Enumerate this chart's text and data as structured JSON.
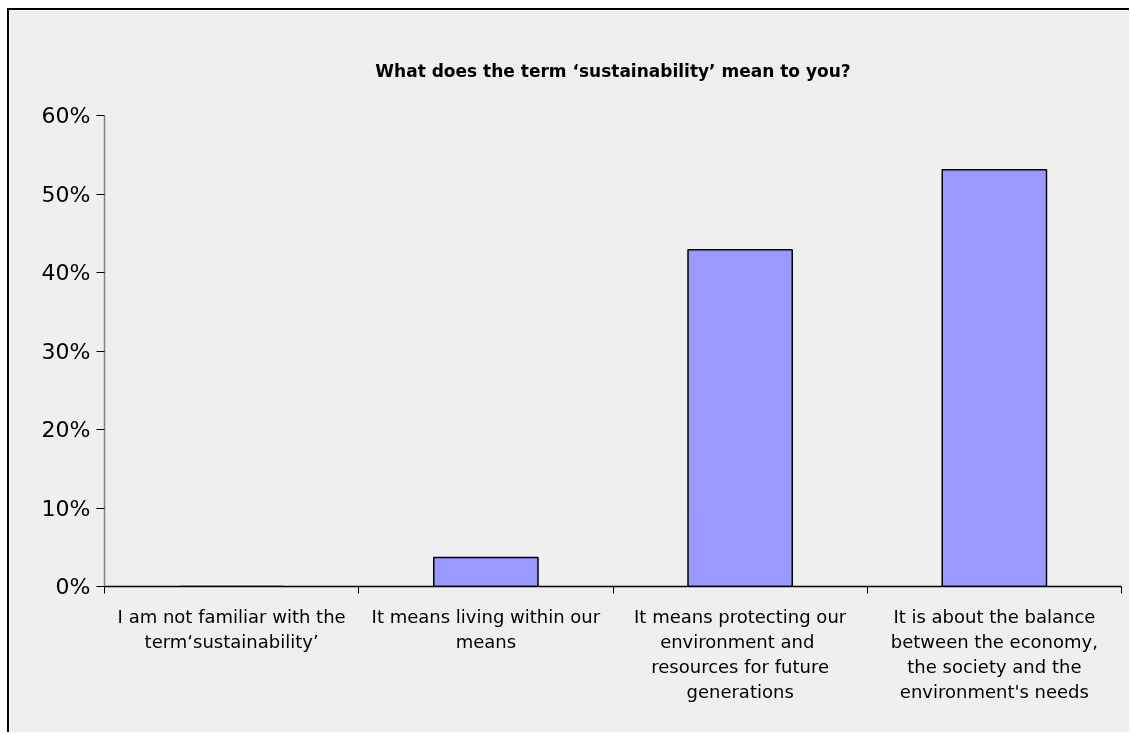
{
  "chart_data": {
    "type": "bar",
    "title": "What does the term ‘sustainability’ mean to you?",
    "categories": [
      "I am not familiar with the term‘sustainability’",
      "It means living within our means",
      "It means protecting our environment  and resources for future generations",
      "It is about the balance between the economy, the society and the environment's needs"
    ],
    "values": [
      0,
      3.7,
      42.9,
      53.1
    ],
    "color": "#9999ff",
    "ylim": [
      0,
      60
    ],
    "yticks": [
      {
        "value": 0,
        "label": "0%"
      },
      {
        "value": 10,
        "label": "10%"
      },
      {
        "value": 20,
        "label": "20%"
      },
      {
        "value": 30,
        "label": "30%"
      },
      {
        "value": 40,
        "label": "40%"
      },
      {
        "value": 50,
        "label": "50%"
      },
      {
        "value": 60,
        "label": "60%"
      }
    ]
  }
}
